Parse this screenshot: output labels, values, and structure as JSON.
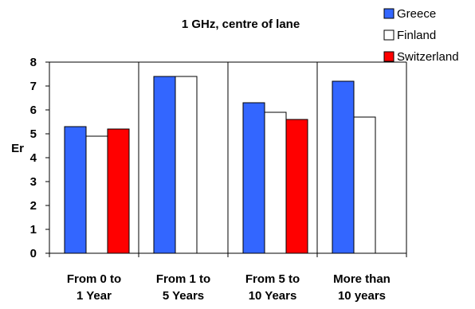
{
  "chart_data": {
    "type": "bar",
    "title": "1 GHz, centre of lane",
    "xlabel": "",
    "ylabel": "Er",
    "ylim": [
      0,
      8
    ],
    "yticks": [
      0,
      1,
      2,
      3,
      4,
      5,
      6,
      7,
      8
    ],
    "grid": "vertical separators",
    "legend_position": "top-right",
    "categories": [
      [
        "From 0 to",
        "1 Year"
      ],
      [
        "From 1 to",
        "5 Years"
      ],
      [
        "From 5 to",
        "10 Years"
      ],
      [
        "More than",
        "10 years"
      ]
    ],
    "series": [
      {
        "name": "Greece",
        "color": "#3366ff",
        "values": [
          5.3,
          7.4,
          6.3,
          7.2
        ]
      },
      {
        "name": "Finland",
        "color": "#ffffff",
        "values": [
          4.9,
          7.4,
          5.9,
          5.7
        ]
      },
      {
        "name": "Switzerland",
        "color": "#ff0000",
        "values": [
          5.2,
          null,
          5.6,
          null
        ]
      }
    ]
  }
}
